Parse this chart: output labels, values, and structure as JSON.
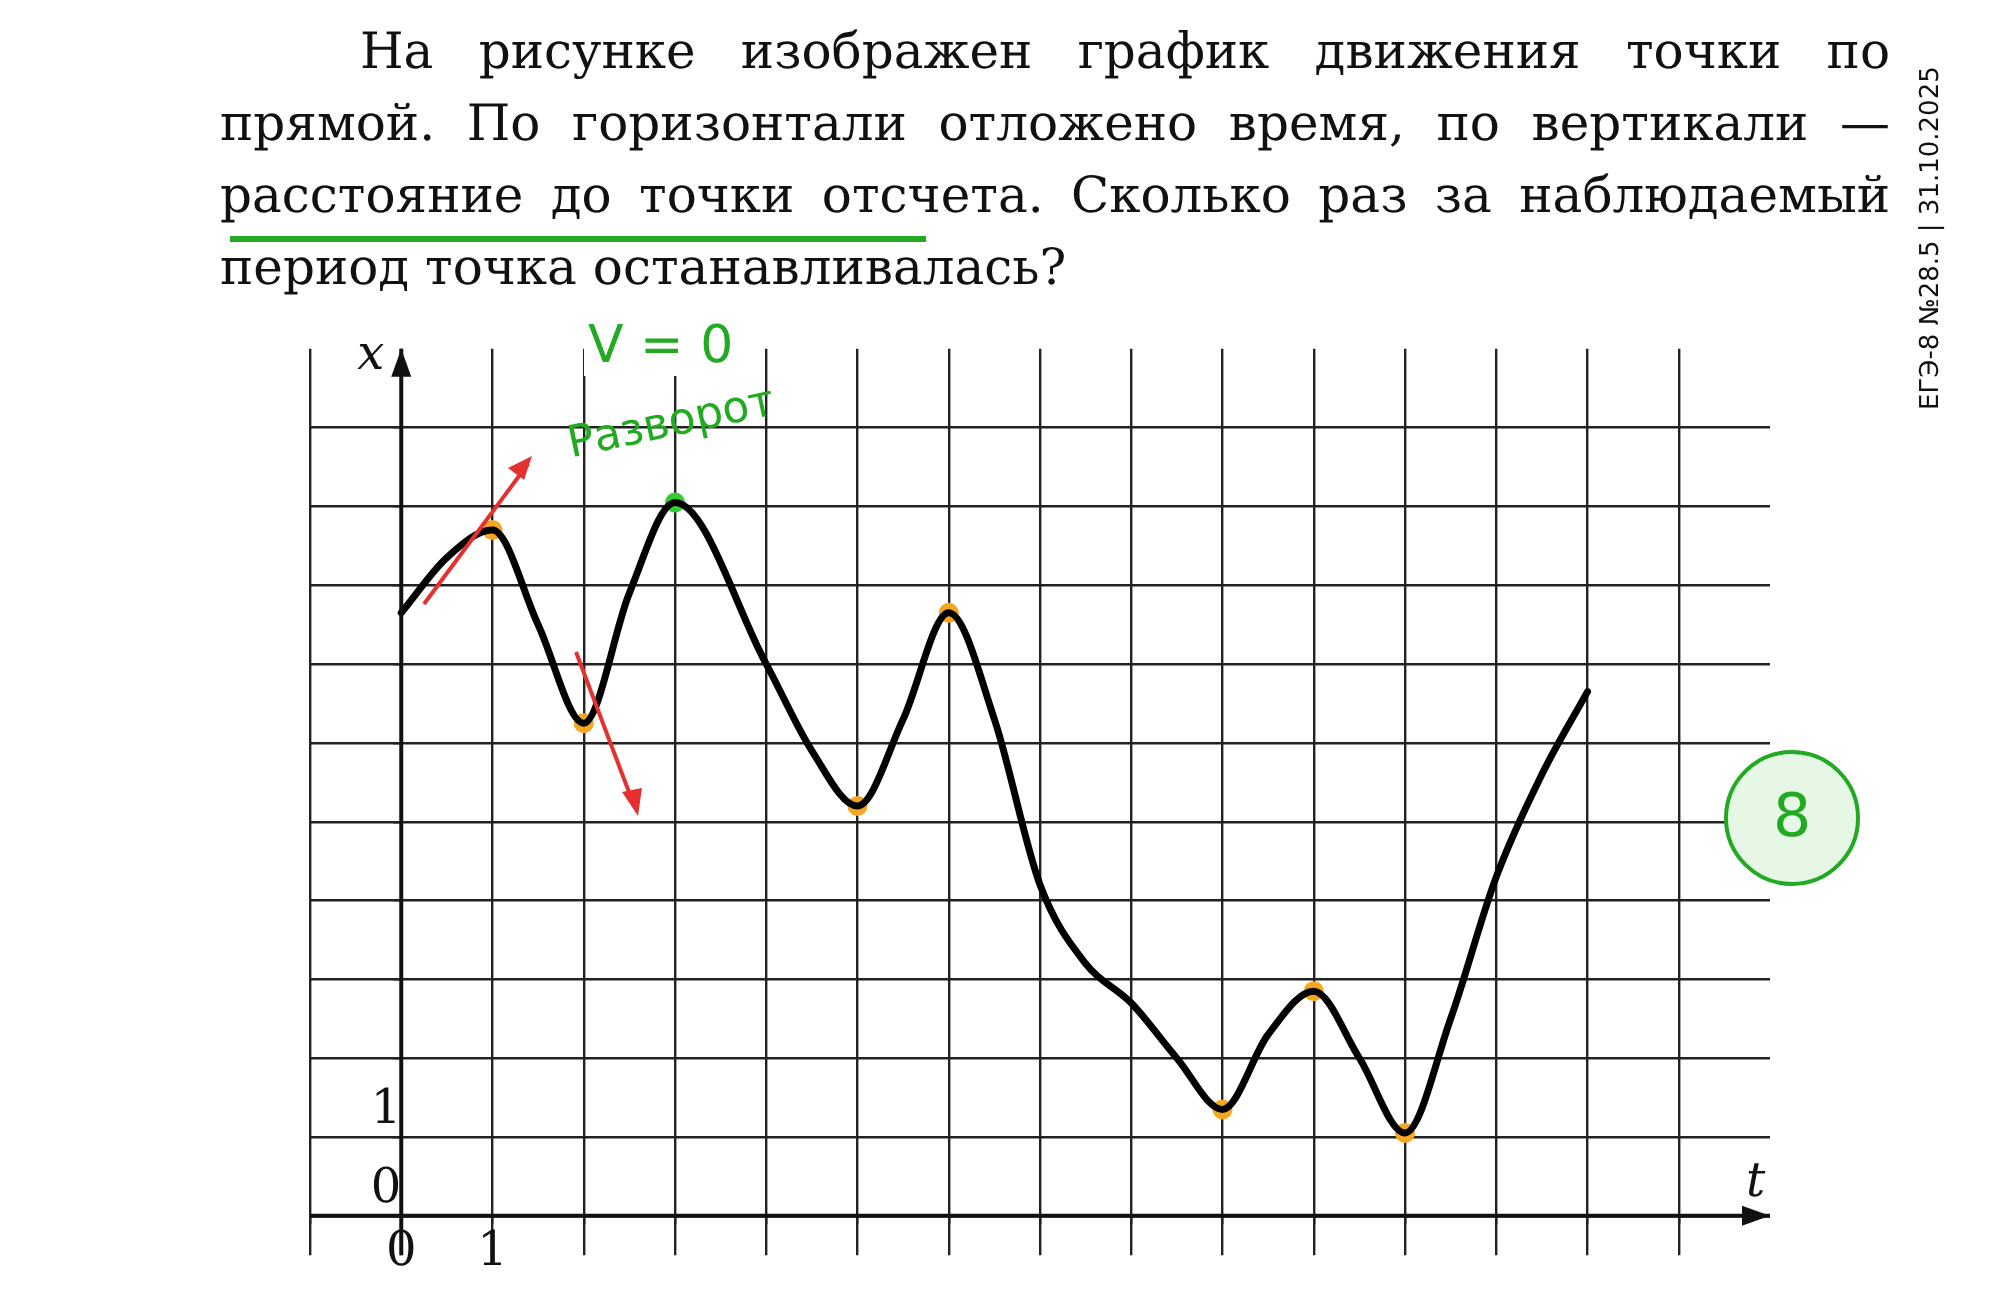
{
  "chart_data": {
    "type": "line",
    "title": "На рисунке изображен график движения точки по прямой. По горизонтали отложено время, по вертикали — расстояние до точки отсчета. Сколько раз за наблюдаемый период точка останавливалась?",
    "xlabel": "t",
    "ylabel": "x",
    "annotations": [
      "ЕГЭ-8 №28.5 | 31.10.2025",
      "V = 0",
      {
        "text": "Разворот",
        "x": 3,
        "y": 9.05
      },
      "8"
    ],
    "xlim": [
      -1,
      15
    ],
    "ylim": [
      -0.5,
      11
    ],
    "xticks": [
      {
        "value": -1,
        "label": null
      },
      {
        "value": 0,
        "label": "0"
      },
      1,
      {
        "value": 2,
        "label": null
      },
      {
        "value": 3,
        "label": null
      },
      {
        "value": 4,
        "label": null
      },
      {
        "value": 5,
        "label": null
      },
      {
        "value": 6,
        "label": null
      },
      {
        "value": 7,
        "label": null
      },
      {
        "value": 8,
        "label": null
      },
      {
        "value": 9,
        "label": null
      },
      {
        "value": 10,
        "label": null
      },
      {
        "value": 11,
        "label": null
      },
      {
        "value": 12,
        "label": null
      },
      {
        "value": 13,
        "label": null
      },
      {
        "value": 14,
        "label": null
      }
    ],
    "yticks": [
      0,
      1,
      {
        "value": 2,
        "label": null
      },
      {
        "value": 3,
        "label": null
      },
      {
        "value": 4,
        "label": null
      },
      {
        "value": 5,
        "label": null
      },
      {
        "value": 6,
        "label": null
      },
      {
        "value": 7,
        "label": null
      },
      {
        "value": 8,
        "label": null
      },
      {
        "value": 9,
        "label": null
      },
      {
        "value": 10,
        "label": null
      }
    ],
    "grid": true,
    "legend": false,
    "series": [
      {
        "type": "line",
        "color": "#000000",
        "x": [
          0,
          0.5,
          1,
          1.5,
          2,
          2.5,
          3,
          4,
          4.5,
          5,
          5.5,
          6,
          6.5,
          7,
          7.5,
          8,
          8.5,
          9,
          9.5,
          10,
          10.5,
          11,
          11.5,
          12,
          12.5,
          13
        ],
        "values": [
          7.65,
          8.35,
          8.7,
          7.5,
          6.25,
          7.9,
          9.05,
          7.0,
          5.9,
          5.2,
          6.3,
          7.65,
          6.3,
          4.2,
          3.2,
          2.7,
          2.0,
          1.35,
          2.3,
          2.85,
          2.0,
          1.05,
          2.5,
          4.3,
          5.6,
          6.65
        ]
      },
      {
        "type": "scatter",
        "marker": "circle",
        "colors": [
          "#f5a623",
          "#f5a623",
          "#33cc33",
          "#f5a623",
          "#f5a623",
          "#f5a623",
          "#f5a623",
          "#f5a623"
        ],
        "x": [
          1,
          2,
          3,
          5,
          6,
          9,
          10,
          11
        ],
        "values": [
          8.7,
          6.25,
          9.05,
          5.2,
          7.65,
          1.35,
          2.85,
          1.05
        ]
      }
    ]
  }
}
